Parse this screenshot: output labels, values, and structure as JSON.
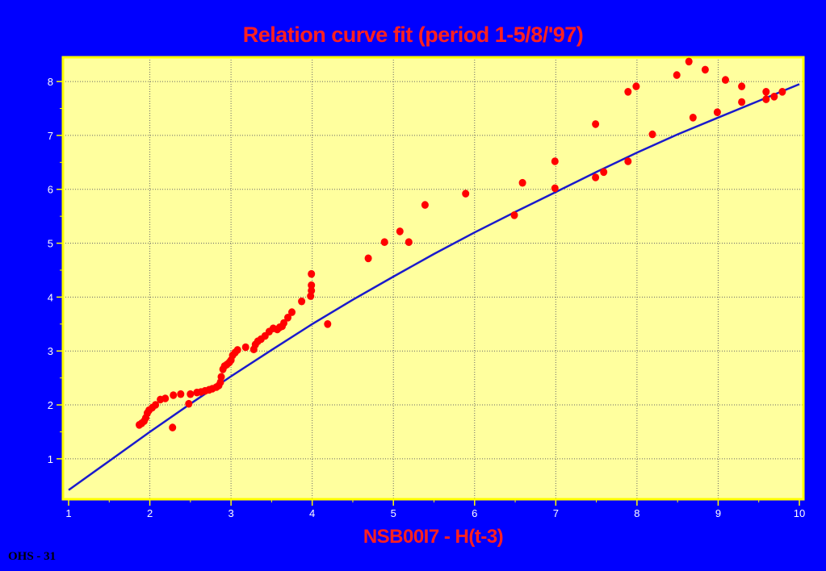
{
  "slide_label": "OHS - 31",
  "colors": {
    "background": "#0000ff",
    "plot_area": "#ffff9e",
    "plot_border": "#ffff00",
    "title": "#ff2020",
    "points": "#ff0000",
    "fit_line": "#1a1acc",
    "grid": "#666666",
    "tick_text": "#ffffff"
  },
  "chart_data": {
    "type": "scatter",
    "title": "Relation curve fit (period 1-5/8/'97)",
    "xlabel": "NSB00I7 - H(t-3)",
    "ylabel": "",
    "xlim": [
      1,
      10
    ],
    "ylim": [
      0.25,
      8.45
    ],
    "xticks": [
      1,
      2,
      3,
      4,
      5,
      6,
      7,
      8,
      9,
      10
    ],
    "yticks": [
      1,
      2,
      3,
      4,
      5,
      6,
      7,
      8
    ],
    "grid": true,
    "points": [
      [
        1.87,
        1.63
      ],
      [
        1.9,
        1.66
      ],
      [
        1.93,
        1.7
      ],
      [
        1.95,
        1.76
      ],
      [
        1.97,
        1.85
      ],
      [
        1.99,
        1.9
      ],
      [
        2.03,
        1.95
      ],
      [
        2.07,
        2.0
      ],
      [
        2.13,
        2.1
      ],
      [
        2.19,
        2.12
      ],
      [
        2.28,
        1.58
      ],
      [
        2.29,
        2.18
      ],
      [
        2.38,
        2.2
      ],
      [
        2.48,
        2.02
      ],
      [
        2.5,
        2.2
      ],
      [
        2.58,
        2.23
      ],
      [
        2.63,
        2.24
      ],
      [
        2.68,
        2.26
      ],
      [
        2.73,
        2.28
      ],
      [
        2.77,
        2.3
      ],
      [
        2.82,
        2.33
      ],
      [
        2.85,
        2.36
      ],
      [
        2.87,
        2.42
      ],
      [
        2.88,
        2.52
      ],
      [
        2.9,
        2.66
      ],
      [
        2.92,
        2.72
      ],
      [
        2.95,
        2.75
      ],
      [
        2.98,
        2.79
      ],
      [
        3.0,
        2.83
      ],
      [
        3.02,
        2.92
      ],
      [
        3.05,
        2.97
      ],
      [
        3.08,
        3.02
      ],
      [
        3.18,
        3.07
      ],
      [
        3.28,
        3.03
      ],
      [
        3.3,
        3.12
      ],
      [
        3.33,
        3.18
      ],
      [
        3.37,
        3.22
      ],
      [
        3.42,
        3.28
      ],
      [
        3.47,
        3.36
      ],
      [
        3.52,
        3.42
      ],
      [
        3.57,
        3.4
      ],
      [
        3.6,
        3.44
      ],
      [
        3.63,
        3.46
      ],
      [
        3.65,
        3.52
      ],
      [
        3.7,
        3.62
      ],
      [
        3.75,
        3.72
      ],
      [
        3.87,
        3.92
      ],
      [
        3.98,
        4.02
      ],
      [
        3.99,
        4.12
      ],
      [
        3.99,
        4.22
      ],
      [
        3.99,
        4.43
      ],
      [
        4.19,
        3.5
      ],
      [
        4.69,
        4.72
      ],
      [
        4.89,
        5.02
      ],
      [
        5.08,
        5.22
      ],
      [
        5.19,
        5.02
      ],
      [
        5.39,
        5.71
      ],
      [
        5.89,
        5.92
      ],
      [
        6.49,
        5.52
      ],
      [
        6.59,
        6.12
      ],
      [
        6.99,
        6.52
      ],
      [
        6.99,
        6.02
      ],
      [
        7.49,
        7.21
      ],
      [
        7.49,
        6.22
      ],
      [
        7.59,
        6.32
      ],
      [
        7.89,
        7.81
      ],
      [
        7.89,
        6.52
      ],
      [
        7.99,
        7.91
      ],
      [
        8.19,
        7.02
      ],
      [
        8.49,
        8.12
      ],
      [
        8.64,
        8.37
      ],
      [
        8.69,
        7.33
      ],
      [
        8.84,
        8.22
      ],
      [
        8.99,
        7.43
      ],
      [
        9.09,
        8.03
      ],
      [
        9.29,
        7.91
      ],
      [
        9.29,
        7.62
      ],
      [
        9.59,
        7.81
      ],
      [
        9.59,
        7.67
      ],
      [
        9.69,
        7.72
      ],
      [
        9.79,
        7.81
      ]
    ],
    "fit_curve": {
      "x": [
        1,
        1.5,
        2,
        2.5,
        3,
        3.5,
        4,
        4.5,
        5,
        5.5,
        6,
        6.5,
        7,
        7.5,
        8,
        8.5,
        9,
        9.5,
        10
      ],
      "y": [
        0.42,
        0.96,
        1.5,
        2.02,
        2.53,
        3.02,
        3.5,
        3.95,
        4.38,
        4.8,
        5.2,
        5.58,
        5.95,
        6.32,
        6.68,
        7.02,
        7.33,
        7.64,
        7.95
      ]
    }
  }
}
